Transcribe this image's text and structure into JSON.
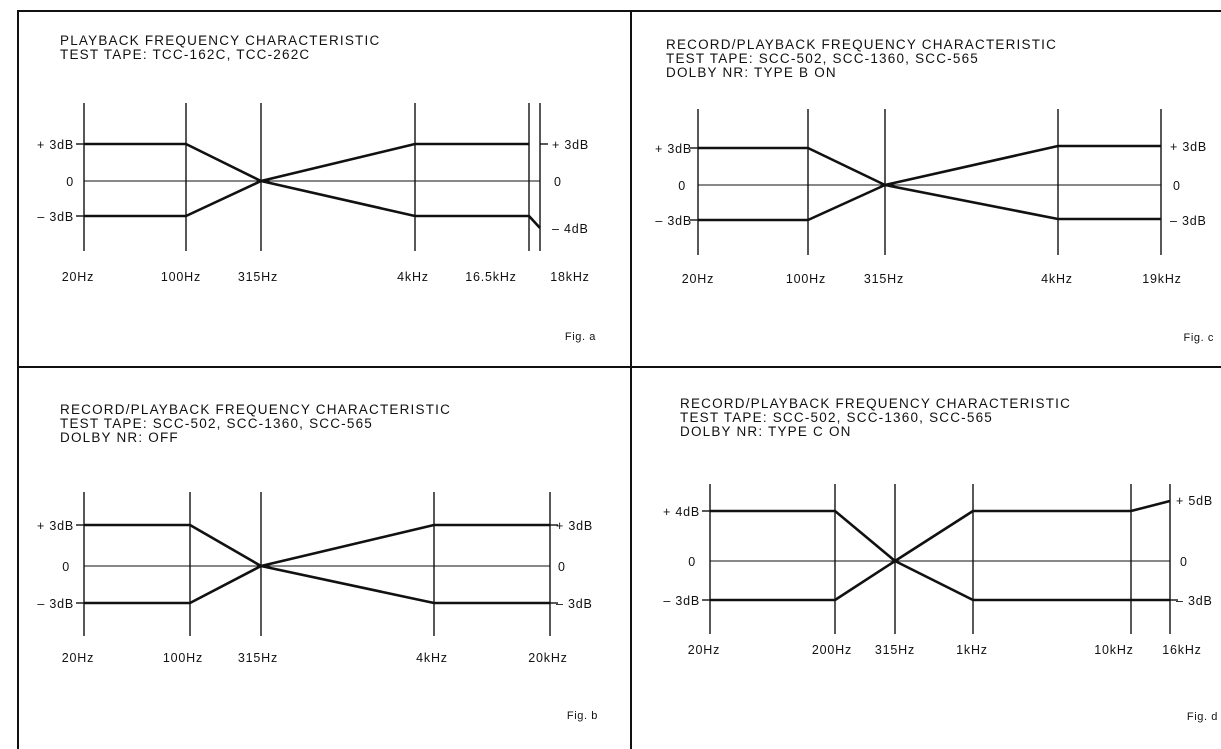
{
  "panels": {
    "a": {
      "title_lines": [
        "PLAYBACK FREQUENCY CHARACTERISTIC",
        "TEST TAPE: TCC-162C, TCC-262C"
      ],
      "left_levels": [
        "+ 3dB",
        "0",
        "– 3dB"
      ],
      "right_levels": [
        "+ 3dB",
        "0",
        "– 4dB"
      ],
      "frequencies": [
        "20Hz",
        "100Hz",
        "315Hz",
        "4kHz",
        "16.5kHz",
        "18kHz"
      ],
      "fig_label": "Fig. a"
    },
    "b": {
      "title_lines": [
        "RECORD/PLAYBACK FREQUENCY CHARACTERISTIC",
        "TEST TAPE: SCC-502, SCC-1360, SCC-565",
        "DOLBY NR: OFF"
      ],
      "left_levels": [
        "+ 3dB",
        "0",
        "– 3dB"
      ],
      "right_levels": [
        "+ 3dB",
        "0",
        "– 3dB"
      ],
      "frequencies": [
        "20Hz",
        "100Hz",
        "315Hz",
        "4kHz",
        "20kHz"
      ],
      "fig_label": "Fig. b"
    },
    "c": {
      "title_lines": [
        "RECORD/PLAYBACK FREQUENCY CHARACTERISTIC",
        "TEST TAPE: SCC-502, SCC-1360, SCC-565",
        "DOLBY NR: TYPE B ON"
      ],
      "left_levels": [
        "+ 3dB",
        "0",
        "– 3dB"
      ],
      "right_levels": [
        "+ 3dB",
        "0",
        "– 3dB"
      ],
      "frequencies": [
        "20Hz",
        "100Hz",
        "315Hz",
        "4kHz",
        "19kHz"
      ],
      "fig_label": "Fig. c"
    },
    "d": {
      "title_lines": [
        "RECORD/PLAYBACK FREQUENCY CHARACTERISTIC",
        "TEST TAPE: SCC-502, SCC-1360, SCC-565",
        "DOLBY NR: TYPE C ON"
      ],
      "left_levels": [
        "+ 4dB",
        "0",
        "– 3dB"
      ],
      "right_levels": [
        "+ 5dB",
        "0",
        "– 3dB"
      ],
      "frequencies": [
        "20Hz",
        "200Hz",
        "315Hz",
        "1kHz",
        "10kHz",
        "16kHz"
      ],
      "fig_label": "Fig. d"
    }
  }
}
